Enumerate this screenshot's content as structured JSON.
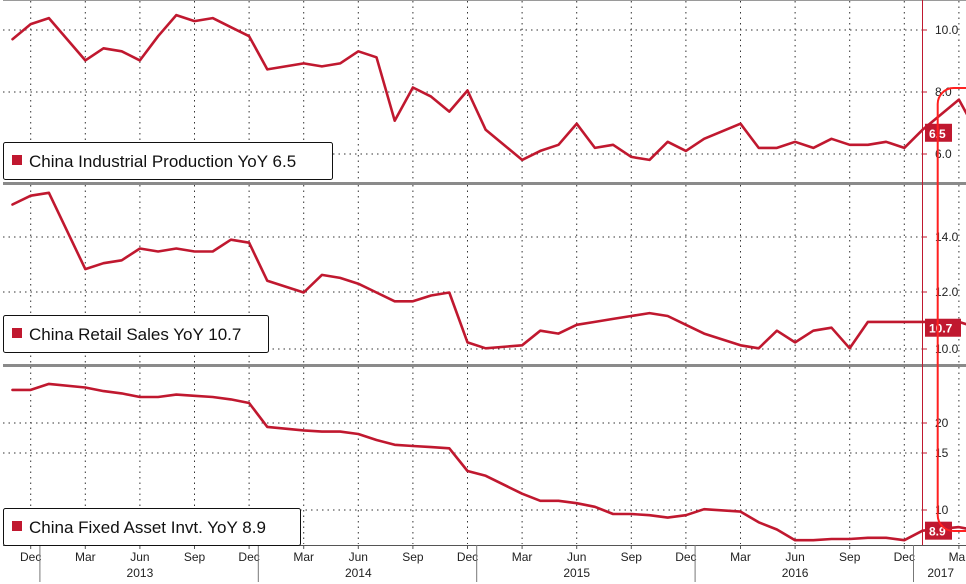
{
  "chart_data": [
    {
      "type": "line",
      "legend": "China Industrial Production YoY 6.5",
      "last_value_label": "6.5",
      "color": "#c0182f",
      "y_ticks": [
        "10.0",
        "8.0",
        "6.0"
      ],
      "ylim": [
        5.2,
        10.9
      ],
      "x": [
        "2012-11",
        "2012-12",
        "2013-01",
        "2013-03",
        "2013-04",
        "2013-05",
        "2013-06",
        "2013-07",
        "2013-08",
        "2013-09",
        "2013-10",
        "2013-11",
        "2013-12",
        "2014-01",
        "2014-03",
        "2014-04",
        "2014-05",
        "2014-06",
        "2014-07",
        "2014-08",
        "2014-09",
        "2014-10",
        "2014-11",
        "2014-12",
        "2015-01",
        "2015-03",
        "2015-04",
        "2015-05",
        "2015-06",
        "2015-07",
        "2015-08",
        "2015-09",
        "2015-10",
        "2015-11",
        "2015-12",
        "2016-01",
        "2016-03",
        "2016-04",
        "2016-05",
        "2016-06",
        "2016-07",
        "2016-08",
        "2016-09",
        "2016-10",
        "2016-11",
        "2016-12",
        "2017-01",
        "2017-03",
        "2017-04"
      ],
      "values": [
        9.6,
        10.1,
        10.3,
        8.9,
        9.3,
        9.2,
        8.9,
        9.7,
        10.4,
        10.2,
        10.3,
        10.0,
        9.7,
        8.6,
        8.8,
        8.7,
        8.8,
        9.2,
        9.0,
        6.9,
        8.0,
        7.7,
        7.2,
        7.9,
        6.6,
        5.6,
        5.9,
        6.1,
        6.8,
        6.0,
        6.1,
        5.7,
        5.6,
        6.2,
        5.9,
        6.3,
        6.8,
        6.0,
        6.0,
        6.2,
        6.0,
        6.3,
        6.1,
        6.1,
        6.2,
        6.0,
        6.6,
        7.6,
        6.5
      ]
    },
    {
      "type": "line",
      "legend": "China Retail Sales YoY 10.7",
      "last_value_label": "10.7",
      "color": "#c0182f",
      "y_ticks": [
        "14.0",
        "12.0",
        "10.0"
      ],
      "ylim": [
        9.6,
        15.6
      ],
      "x": [
        "2012-11",
        "2012-12",
        "2013-01",
        "2013-03",
        "2013-04",
        "2013-05",
        "2013-06",
        "2013-07",
        "2013-08",
        "2013-09",
        "2013-10",
        "2013-11",
        "2013-12",
        "2014-01",
        "2014-03",
        "2014-04",
        "2014-05",
        "2014-06",
        "2014-07",
        "2014-08",
        "2014-09",
        "2014-10",
        "2014-11",
        "2014-12",
        "2015-01",
        "2015-03",
        "2015-04",
        "2015-05",
        "2015-06",
        "2015-07",
        "2015-08",
        "2015-09",
        "2015-10",
        "2015-11",
        "2015-12",
        "2016-01",
        "2016-03",
        "2016-04",
        "2016-05",
        "2016-06",
        "2016-07",
        "2016-08",
        "2016-09",
        "2016-10",
        "2016-11",
        "2016-12",
        "2017-01",
        "2017-03",
        "2017-04"
      ],
      "values": [
        14.9,
        15.2,
        15.3,
        12.7,
        12.9,
        13.0,
        13.4,
        13.3,
        13.4,
        13.3,
        13.3,
        13.7,
        13.6,
        12.3,
        11.9,
        12.5,
        12.4,
        12.2,
        11.9,
        11.6,
        11.6,
        11.8,
        11.9,
        10.2,
        10.0,
        10.1,
        10.6,
        10.5,
        10.8,
        10.9,
        11.0,
        11.1,
        11.2,
        11.1,
        10.8,
        10.5,
        10.1,
        10.0,
        10.6,
        10.2,
        10.6,
        10.7,
        10.0,
        10.9,
        10.9,
        10.9,
        10.9,
        10.9,
        10.7
      ]
    },
    {
      "type": "line",
      "legend": "China Fixed Asset Invt. YoY 8.9",
      "last_value_label": "8.9",
      "color": "#c0182f",
      "y_ticks": [
        "20",
        "15",
        "10"
      ],
      "ylim": [
        7.7,
        22.7
      ],
      "x": [
        "2012-11",
        "2012-12",
        "2013-01",
        "2013-03",
        "2013-04",
        "2013-05",
        "2013-06",
        "2013-07",
        "2013-08",
        "2013-09",
        "2013-10",
        "2013-11",
        "2013-12",
        "2014-01",
        "2014-03",
        "2014-04",
        "2014-05",
        "2014-06",
        "2014-07",
        "2014-08",
        "2014-09",
        "2014-10",
        "2014-11",
        "2014-12",
        "2015-01",
        "2015-03",
        "2015-04",
        "2015-05",
        "2015-06",
        "2015-07",
        "2015-08",
        "2015-09",
        "2015-10",
        "2015-11",
        "2015-12",
        "2016-01",
        "2016-03",
        "2016-04",
        "2016-05",
        "2016-06",
        "2016-07",
        "2016-08",
        "2016-09",
        "2016-10",
        "2016-11",
        "2016-12",
        "2017-01",
        "2017-03",
        "2017-04"
      ],
      "values": [
        20.7,
        20.7,
        21.2,
        20.9,
        20.6,
        20.4,
        20.1,
        20.1,
        20.3,
        20.2,
        20.1,
        19.9,
        19.6,
        17.6,
        17.3,
        17.2,
        17.2,
        17.0,
        16.5,
        16.1,
        16.0,
        15.9,
        15.8,
        13.9,
        13.5,
        12.0,
        11.4,
        11.4,
        11.2,
        10.9,
        10.3,
        10.3,
        10.2,
        10.0,
        10.2,
        10.7,
        10.5,
        9.6,
        9.0,
        8.1,
        8.1,
        8.2,
        8.2,
        8.3,
        8.3,
        8.1,
        8.9,
        9.2,
        8.9
      ]
    }
  ],
  "x_axis": {
    "month_ticks": [
      {
        "date": "2012-12",
        "label": "Dec"
      },
      {
        "date": "2013-03",
        "label": "Mar"
      },
      {
        "date": "2013-06",
        "label": "Jun"
      },
      {
        "date": "2013-09",
        "label": "Sep"
      },
      {
        "date": "2013-12",
        "label": "Dec"
      },
      {
        "date": "2014-03",
        "label": "Mar"
      },
      {
        "date": "2014-06",
        "label": "Jun"
      },
      {
        "date": "2014-09",
        "label": "Sep"
      },
      {
        "date": "2014-12",
        "label": "Dec"
      },
      {
        "date": "2015-03",
        "label": "Mar"
      },
      {
        "date": "2015-06",
        "label": "Jun"
      },
      {
        "date": "2015-09",
        "label": "Sep"
      },
      {
        "date": "2015-12",
        "label": "Dec"
      },
      {
        "date": "2016-03",
        "label": "Mar"
      },
      {
        "date": "2016-06",
        "label": "Jun"
      },
      {
        "date": "2016-09",
        "label": "Sep"
      },
      {
        "date": "2016-12",
        "label": "Dec"
      },
      {
        "date": "2017-03",
        "label": "Mar"
      }
    ],
    "year_labels": [
      {
        "date": "2013-06",
        "label": "2013"
      },
      {
        "date": "2014-06",
        "label": "2014"
      },
      {
        "date": "2015-06",
        "label": "2015"
      },
      {
        "date": "2016-06",
        "label": "2016"
      },
      {
        "date": "2017-02",
        "label": "2017"
      }
    ],
    "year_boundaries": [
      "2013-01",
      "2014-01",
      "2015-01",
      "2016-01",
      "2017-01"
    ]
  },
  "highlight": {
    "from": "2017-02",
    "to": "2017-04",
    "color": "#ff2020"
  },
  "colors": {
    "line": "#c0182f",
    "grid": "#333333",
    "separator": "#8a8a8a",
    "axis": "#c0182f"
  }
}
